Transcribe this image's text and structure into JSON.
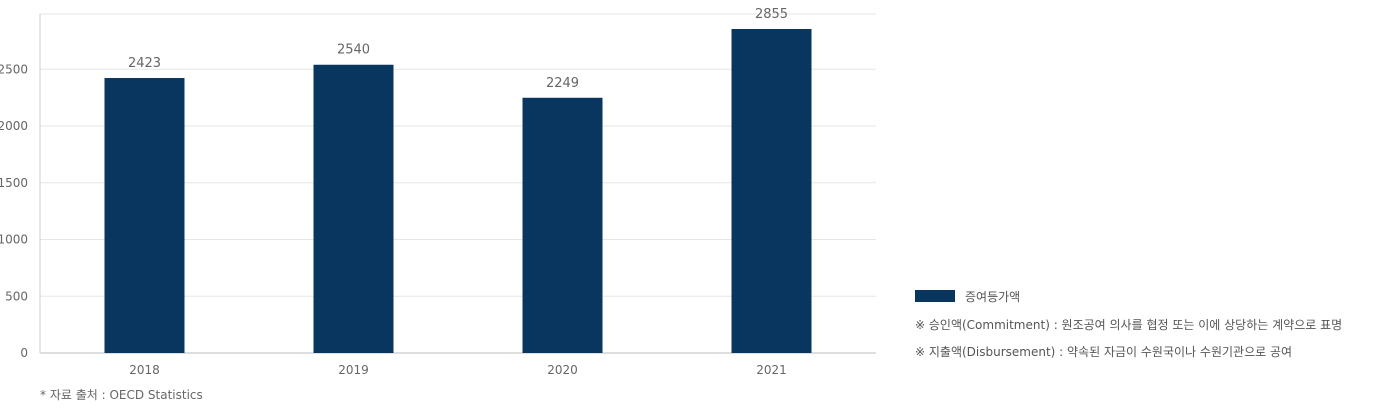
{
  "chart_data": {
    "type": "bar",
    "categories": [
      "2018",
      "2019",
      "2020",
      "2021"
    ],
    "series": [
      {
        "name": "증여등가액",
        "values": [
          2423,
          2540,
          2249,
          2855
        ]
      }
    ],
    "ylim": [
      0,
      2855
    ],
    "yticks": [
      0,
      500,
      1000,
      1500,
      2000,
      2500
    ],
    "grid": true,
    "legend": "right",
    "color": "#08365f"
  },
  "legend": {
    "label": "증여등가액",
    "notes": [
      "※ 승인액(Commitment) : 원조공여 의사를 협정 또는 이에 상당하는 계약으로 표명",
      "※ 지출액(Disbursement) : 약속된 자금이 수원국이나 수원기관으로 공여"
    ]
  },
  "source": "* 자료 출처 : OECD Statistics"
}
